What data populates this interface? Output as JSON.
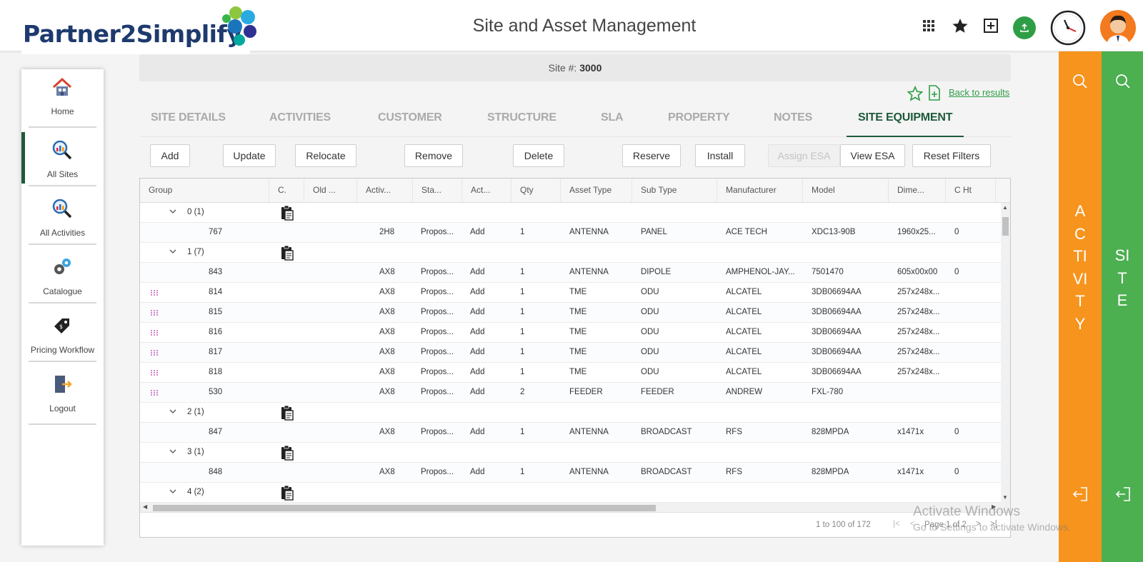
{
  "header": {
    "logo_text": "Partner2Simplify",
    "title": "Site and Asset Management",
    "icons": [
      "apps-grid-icon",
      "star-icon",
      "add-box-icon",
      "upload-icon",
      "clock-icon",
      "avatar"
    ]
  },
  "nav": {
    "items": [
      {
        "label": "Home",
        "icon": "home-icon"
      },
      {
        "label": "All Sites",
        "icon": "search-chart-icon",
        "active": true
      },
      {
        "label": "All Activities",
        "icon": "search-chart-icon"
      },
      {
        "label": "Catalogue",
        "icon": "gears-icon"
      },
      {
        "label": "Pricing Workflow",
        "icon": "price-tag-icon"
      },
      {
        "label": "Logout",
        "icon": "logout-icon"
      }
    ]
  },
  "site": {
    "label": "Site #:",
    "number": "3000"
  },
  "back_link": "Back to results",
  "tabs": [
    "SITE DETAILS",
    "ACTIVITIES",
    "CUSTOMER",
    "STRUCTURE",
    "SLA",
    "PROPERTY",
    "NOTES",
    "SITE EQUIPMENT"
  ],
  "active_tab": "SITE EQUIPMENT",
  "buttons": {
    "add": "Add",
    "update": "Update",
    "relocate": "Relocate",
    "remove": "Remove",
    "delete": "Delete",
    "reserve": "Reserve",
    "install": "Install",
    "assign_esa": "Assign ESA",
    "view_esa": "View ESA",
    "reset_filters": "Reset Filters"
  },
  "grid": {
    "columns": [
      "Group",
      "C.",
      "Old ...",
      "Activ...",
      "Sta...",
      "Act...",
      "Qty",
      "Asset Type",
      "Sub Type",
      "Manufacturer",
      "Model",
      "Dime...",
      "C Ht"
    ],
    "rows": [
      {
        "type": "group",
        "label": "0 (1)"
      },
      {
        "type": "data",
        "id": "767",
        "activity": "2H8",
        "status": "Propos...",
        "action": "Add",
        "qty": "1",
        "asset_type": "ANTENNA",
        "sub_type": "PANEL",
        "manufacturer": "ACE TECH",
        "model": "XDC13-90B",
        "dimensions": "1960x25...",
        "c_ht": "0",
        "drag": false
      },
      {
        "type": "group",
        "label": "1 (7)"
      },
      {
        "type": "data",
        "id": "843",
        "activity": "AX8",
        "status": "Propos...",
        "action": "Add",
        "qty": "1",
        "asset_type": "ANTENNA",
        "sub_type": "DIPOLE",
        "manufacturer": "AMPHENOL-JAY...",
        "model": "7501470",
        "dimensions": "605x00x00",
        "c_ht": "0",
        "drag": false
      },
      {
        "type": "data",
        "id": "814",
        "activity": "AX8",
        "status": "Propos...",
        "action": "Add",
        "qty": "1",
        "asset_type": "TME",
        "sub_type": "ODU",
        "manufacturer": "ALCATEL",
        "model": "3DB06694AA",
        "dimensions": "257x248x...",
        "c_ht": "",
        "drag": true
      },
      {
        "type": "data",
        "id": "815",
        "activity": "AX8",
        "status": "Propos...",
        "action": "Add",
        "qty": "1",
        "asset_type": "TME",
        "sub_type": "ODU",
        "manufacturer": "ALCATEL",
        "model": "3DB06694AA",
        "dimensions": "257x248x...",
        "c_ht": "",
        "drag": true
      },
      {
        "type": "data",
        "id": "816",
        "activity": "AX8",
        "status": "Propos...",
        "action": "Add",
        "qty": "1",
        "asset_type": "TME",
        "sub_type": "ODU",
        "manufacturer": "ALCATEL",
        "model": "3DB06694AA",
        "dimensions": "257x248x...",
        "c_ht": "",
        "drag": true
      },
      {
        "type": "data",
        "id": "817",
        "activity": "AX8",
        "status": "Propos...",
        "action": "Add",
        "qty": "1",
        "asset_type": "TME",
        "sub_type": "ODU",
        "manufacturer": "ALCATEL",
        "model": "3DB06694AA",
        "dimensions": "257x248x...",
        "c_ht": "",
        "drag": true
      },
      {
        "type": "data",
        "id": "818",
        "activity": "AX8",
        "status": "Propos...",
        "action": "Add",
        "qty": "1",
        "asset_type": "TME",
        "sub_type": "ODU",
        "manufacturer": "ALCATEL",
        "model": "3DB06694AA",
        "dimensions": "257x248x...",
        "c_ht": "",
        "drag": true
      },
      {
        "type": "data",
        "id": "530",
        "activity": "AX8",
        "status": "Propos...",
        "action": "Add",
        "qty": "2",
        "asset_type": "FEEDER",
        "sub_type": "FEEDER",
        "manufacturer": "ANDREW",
        "model": "FXL-780",
        "dimensions": "",
        "c_ht": "",
        "drag": true
      },
      {
        "type": "group",
        "label": "2 (1)"
      },
      {
        "type": "data",
        "id": "847",
        "activity": "AX8",
        "status": "Propos...",
        "action": "Add",
        "qty": "1",
        "asset_type": "ANTENNA",
        "sub_type": "BROADCAST",
        "manufacturer": "RFS",
        "model": "828MPDA",
        "dimensions": "x1471x",
        "c_ht": "0",
        "drag": false
      },
      {
        "type": "group",
        "label": "3 (1)"
      },
      {
        "type": "data",
        "id": "848",
        "activity": "AX8",
        "status": "Propos...",
        "action": "Add",
        "qty": "1",
        "asset_type": "ANTENNA",
        "sub_type": "BROADCAST",
        "manufacturer": "RFS",
        "model": "828MPDA",
        "dimensions": "x1471x",
        "c_ht": "0",
        "drag": false
      },
      {
        "type": "group",
        "label": "4 (2)"
      }
    ],
    "pagination": {
      "range": "1 to 100 of 172",
      "page_label": "Page 1 of 2"
    }
  },
  "panels": {
    "activity": "ACTIVITY",
    "site": "SITE",
    "activity_color": "#f7941d",
    "site_color": "#4caf50"
  },
  "watermark": {
    "line1": "Activate Windows",
    "line2": "Go to Settings to activate Windows."
  }
}
